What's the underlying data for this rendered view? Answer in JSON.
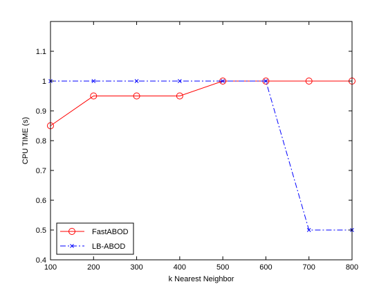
{
  "chart_data": {
    "type": "line",
    "title": "",
    "xlabel": "k Nearest Neighbor",
    "ylabel": "CPU TIME (s)",
    "xlim": [
      100,
      800
    ],
    "ylim": [
      0.4,
      1.2
    ],
    "xticks": [
      100,
      200,
      300,
      400,
      500,
      600,
      700,
      800
    ],
    "yticks": [
      0.4,
      0.5,
      0.6,
      0.7,
      0.8,
      0.9,
      1,
      1.1
    ],
    "xtick_labels": [
      "100",
      "200",
      "300",
      "400",
      "500",
      "600",
      "700",
      "800"
    ],
    "ytick_labels": [
      "0.4",
      "0.5",
      "0.6",
      "0.7",
      "0.8",
      "0.9",
      "1",
      "1.1"
    ],
    "grid": false,
    "legend_position": "bottom-left",
    "x": [
      100,
      200,
      300,
      400,
      500,
      600,
      700,
      800
    ],
    "series": [
      {
        "name": "FastABOD",
        "values": [
          0.85,
          0.95,
          0.95,
          0.95,
          1.0,
          1.0,
          1.0,
          1.0
        ],
        "color": "#ff0000",
        "line_style": "solid",
        "marker": "circle"
      },
      {
        "name": "LB-ABOD",
        "values": [
          1.0,
          1.0,
          1.0,
          1.0,
          1.0,
          1.0,
          0.5,
          0.5
        ],
        "color": "#0000ff",
        "line_style": "dash-dot",
        "marker": "x"
      }
    ]
  }
}
